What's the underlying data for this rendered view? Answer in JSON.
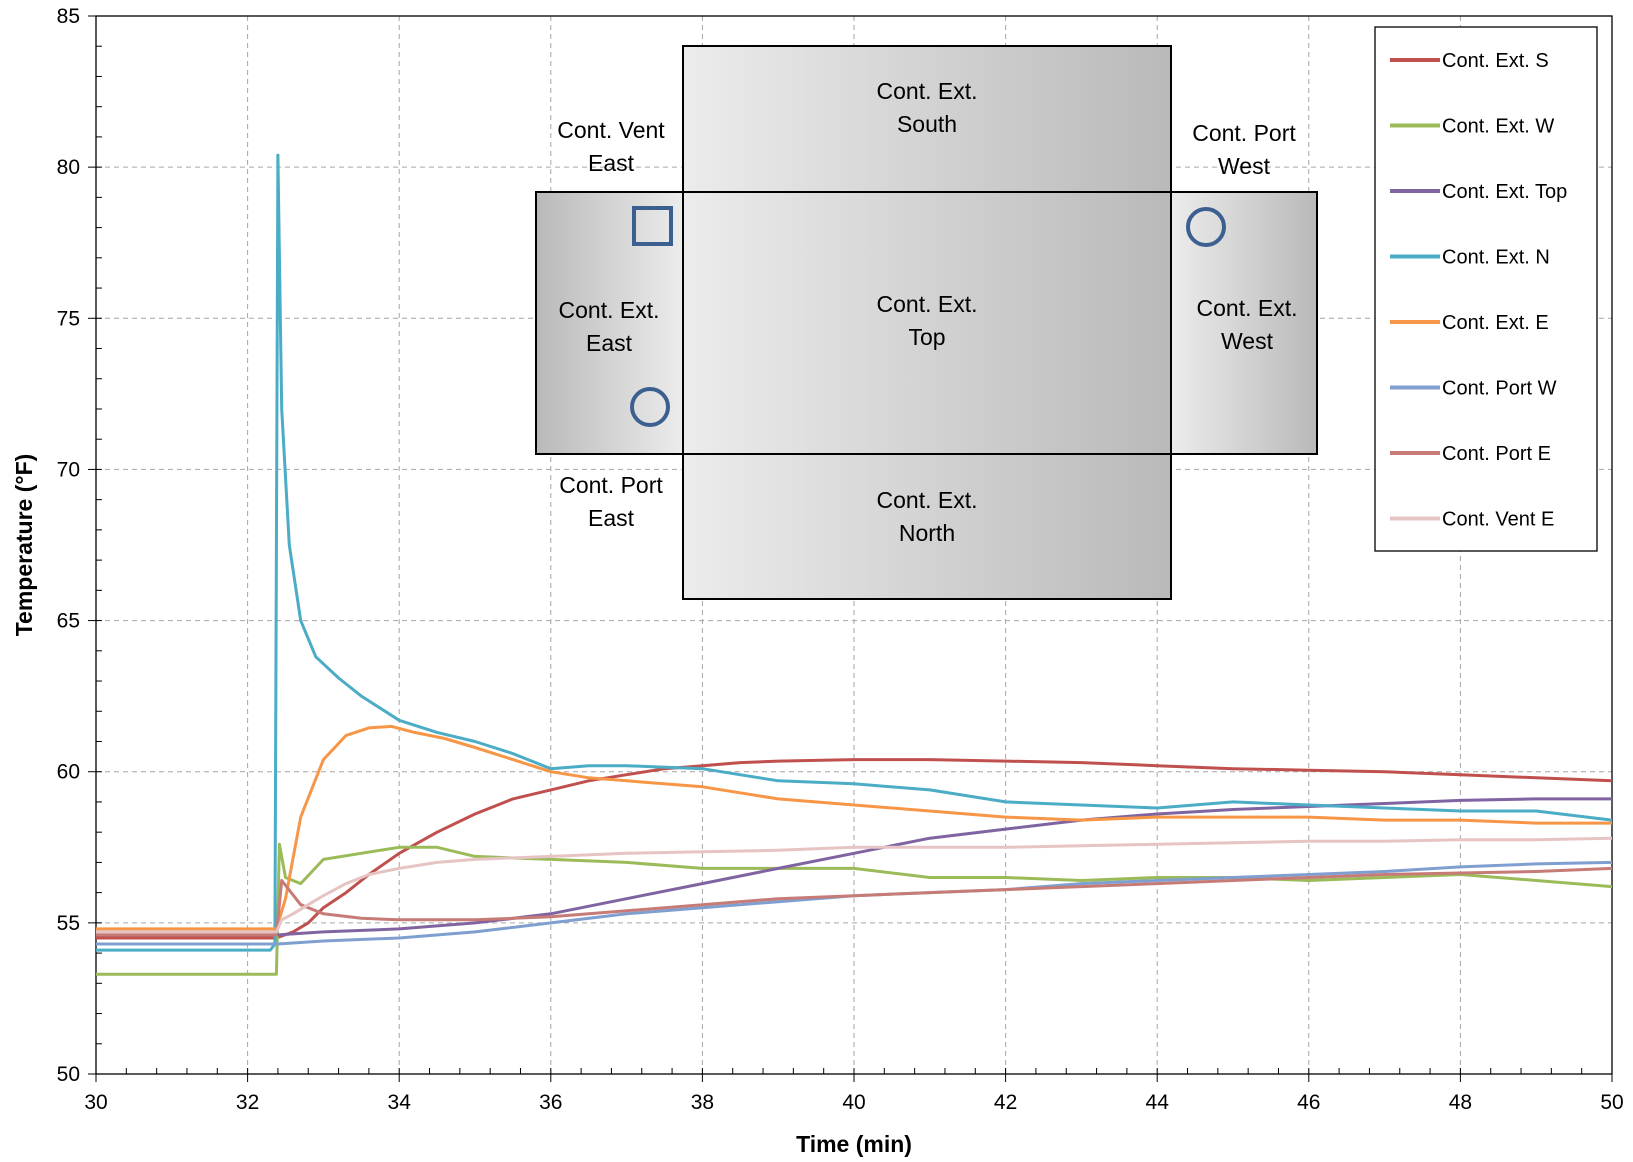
{
  "chart_data": {
    "type": "line",
    "xlabel": "Time (min)",
    "ylabel": "Temperature (°F)",
    "xlim": [
      30,
      50
    ],
    "ylim": [
      50,
      85
    ],
    "x_ticks": [
      30,
      32,
      34,
      36,
      38,
      40,
      42,
      44,
      46,
      48,
      50
    ],
    "y_ticks": [
      50,
      55,
      60,
      65,
      70,
      75,
      80,
      85
    ],
    "grid": "dashed major gridlines",
    "legend_position": "top-right",
    "series": [
      {
        "name": "Cont. Ext. S",
        "color": "#c0504d",
        "x": [
          30,
          32.38,
          32.6,
          32.8,
          33.0,
          33.3,
          33.6,
          34.0,
          34.5,
          35.0,
          35.5,
          36.0,
          36.5,
          37.0,
          37.5,
          38.0,
          38.5,
          39.0,
          40.0,
          41.0,
          42.0,
          43.0,
          44.0,
          45.0,
          46.0,
          47.0,
          48.0,
          49.0,
          50.0
        ],
        "y": [
          54.5,
          54.5,
          54.7,
          55.0,
          55.5,
          56.0,
          56.6,
          57.3,
          58.0,
          58.6,
          59.1,
          59.4,
          59.7,
          59.9,
          60.1,
          60.2,
          60.3,
          60.35,
          60.4,
          60.4,
          60.35,
          60.3,
          60.2,
          60.1,
          60.05,
          60.0,
          59.9,
          59.8,
          59.7
        ]
      },
      {
        "name": "Cont. Ext. W",
        "color": "#9bbb59",
        "x": [
          30,
          32.38,
          32.42,
          32.5,
          32.7,
          33.0,
          33.5,
          34.0,
          34.5,
          35.0,
          36.0,
          37.0,
          38.0,
          39.0,
          40.0,
          41.0,
          42.0,
          43.0,
          44.0,
          45.0,
          46.0,
          47.0,
          48.0,
          49.0,
          50.0
        ],
        "y": [
          53.3,
          53.3,
          57.6,
          56.5,
          56.3,
          57.1,
          57.3,
          57.5,
          57.5,
          57.2,
          57.1,
          57.0,
          56.8,
          56.8,
          56.8,
          56.5,
          56.5,
          56.4,
          56.5,
          56.5,
          56.4,
          56.5,
          56.6,
          56.4,
          56.2
        ]
      },
      {
        "name": "Cont. Ext. Top",
        "color": "#8064a2",
        "x": [
          30,
          32.4,
          33.0,
          34.0,
          35.0,
          36.0,
          37.0,
          38.0,
          39.0,
          40.0,
          41.0,
          42.0,
          43.0,
          44.0,
          45.0,
          46.0,
          47.0,
          48.0,
          49.0,
          50.0
        ],
        "y": [
          54.6,
          54.6,
          54.7,
          54.8,
          55.0,
          55.3,
          55.8,
          56.3,
          56.8,
          57.3,
          57.8,
          58.1,
          58.4,
          58.6,
          58.75,
          58.85,
          58.95,
          59.05,
          59.1,
          59.1
        ]
      },
      {
        "name": "Cont. Ext. N",
        "color": "#4bacc6",
        "x": [
          30,
          32.3,
          32.36,
          32.4,
          32.45,
          32.55,
          32.7,
          32.9,
          33.2,
          33.5,
          34.0,
          34.5,
          35.0,
          35.5,
          36.0,
          36.5,
          37.0,
          38.0,
          39.0,
          40.0,
          41.0,
          42.0,
          43.0,
          44.0,
          45.0,
          46.0,
          47.0,
          48.0,
          49.0,
          50.0
        ],
        "y": [
          54.1,
          54.1,
          54.3,
          80.4,
          72.0,
          67.5,
          65.0,
          63.8,
          63.1,
          62.5,
          61.7,
          61.3,
          61.0,
          60.6,
          60.1,
          60.2,
          60.2,
          60.1,
          59.7,
          59.6,
          59.4,
          59.0,
          58.9,
          58.8,
          59.0,
          58.9,
          58.8,
          58.7,
          58.7,
          58.4
        ]
      },
      {
        "name": "Cont. Ext. E",
        "color": "#f79646",
        "x": [
          30,
          32.38,
          32.5,
          32.7,
          33.0,
          33.3,
          33.6,
          33.9,
          34.2,
          34.6,
          35.0,
          35.5,
          36.0,
          36.5,
          37.0,
          38.0,
          39.0,
          40.0,
          41.0,
          42.0,
          43.0,
          44.0,
          45.0,
          46.0,
          47.0,
          48.0,
          49.0,
          50.0
        ],
        "y": [
          54.8,
          54.8,
          55.8,
          58.5,
          60.4,
          61.2,
          61.45,
          61.5,
          61.3,
          61.1,
          60.8,
          60.4,
          60.0,
          59.8,
          59.7,
          59.5,
          59.1,
          58.9,
          58.7,
          58.5,
          58.4,
          58.5,
          58.5,
          58.5,
          58.4,
          58.4,
          58.3,
          58.3
        ]
      },
      {
        "name": "Cont. Port W",
        "color": "#7f9fd1",
        "x": [
          30,
          32.4,
          33.0,
          34.0,
          35.0,
          36.0,
          37.0,
          38.0,
          39.0,
          40.0,
          41.0,
          42.0,
          43.0,
          44.0,
          45.0,
          46.0,
          47.0,
          48.0,
          49.0,
          50.0
        ],
        "y": [
          54.3,
          54.3,
          54.4,
          54.5,
          54.7,
          55.0,
          55.3,
          55.5,
          55.7,
          55.9,
          56.0,
          56.1,
          56.3,
          56.4,
          56.5,
          56.6,
          56.7,
          56.85,
          56.95,
          57.0
        ]
      },
      {
        "name": "Cont. Port E",
        "color": "#c77b77",
        "x": [
          30,
          32.38,
          32.45,
          32.7,
          33.0,
          33.5,
          34.0,
          35.0,
          36.0,
          37.0,
          38.0,
          39.0,
          40.0,
          41.0,
          42.0,
          43.0,
          44.0,
          45.0,
          46.0,
          47.0,
          48.0,
          49.0,
          50.0
        ],
        "y": [
          54.6,
          54.6,
          56.4,
          55.6,
          55.3,
          55.15,
          55.1,
          55.1,
          55.2,
          55.4,
          55.6,
          55.8,
          55.9,
          56.0,
          56.1,
          56.2,
          56.3,
          56.4,
          56.5,
          56.6,
          56.65,
          56.7,
          56.8
        ]
      },
      {
        "name": "Cont. Vent E",
        "color": "#e6c4c4",
        "x": [
          30,
          32.38,
          32.45,
          32.6,
          32.8,
          33.0,
          33.3,
          33.6,
          34.0,
          34.5,
          35.0,
          36.0,
          37.0,
          38.0,
          39.0,
          40.0,
          41.0,
          42.0,
          43.0,
          44.0,
          45.0,
          46.0,
          47.0,
          48.0,
          49.0,
          50.0
        ],
        "y": [
          54.7,
          54.7,
          55.1,
          55.3,
          55.6,
          55.9,
          56.3,
          56.6,
          56.8,
          57.0,
          57.1,
          57.2,
          57.3,
          57.35,
          57.4,
          57.5,
          57.5,
          57.5,
          57.55,
          57.6,
          57.65,
          57.7,
          57.7,
          57.75,
          57.75,
          57.8
        ]
      }
    ]
  },
  "inset": {
    "labels": {
      "south": [
        "Cont. Ext.",
        "South"
      ],
      "top": [
        "Cont. Ext.",
        "Top"
      ],
      "north": [
        "Cont. Ext.",
        "North"
      ],
      "east": [
        "Cont. Ext.",
        "East"
      ],
      "west": [
        "Cont. Ext.",
        "West"
      ],
      "vent_east": [
        "Cont. Vent",
        "East"
      ],
      "port_west": [
        "Cont. Port",
        "West"
      ],
      "port_east": [
        "Cont. Port",
        "East"
      ]
    },
    "marker_color": "#3b5f8f"
  }
}
